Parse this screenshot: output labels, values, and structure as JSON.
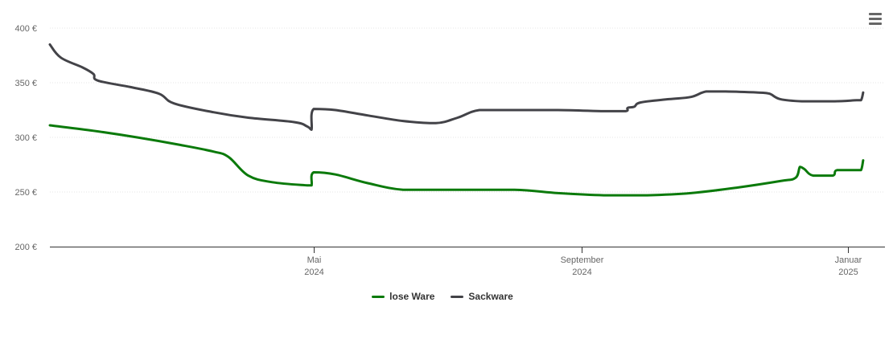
{
  "chart_data": {
    "type": "line",
    "title": "",
    "xlabel": "",
    "ylabel": "",
    "y_ticks": [
      "200 €",
      "250 €",
      "300 €",
      "350 €",
      "400 €"
    ],
    "ylim": [
      200,
      400
    ],
    "x_range": [
      "2024-01-01",
      "2025-01-18"
    ],
    "x_ticks": [
      {
        "date": "2024-05-01",
        "month": "Mai",
        "year": "2024"
      },
      {
        "date": "2024-09-01",
        "month": "September",
        "year": "2024"
      },
      {
        "date": "2025-01-01",
        "month": "Januar",
        "year": "2025"
      }
    ],
    "grid": "horizontal",
    "legend_position": "bottom-center",
    "series": [
      {
        "name": "lose Ware",
        "color": "#0b7a0b",
        "points": [
          [
            "2024-01-01",
            311
          ],
          [
            "2024-01-21",
            306
          ],
          [
            "2024-02-10",
            300
          ],
          [
            "2024-03-01",
            293
          ],
          [
            "2024-03-16",
            287
          ],
          [
            "2024-03-23",
            282
          ],
          [
            "2024-04-01",
            265
          ],
          [
            "2024-04-12",
            259
          ],
          [
            "2024-04-28",
            256
          ],
          [
            "2024-04-30",
            256
          ],
          [
            "2024-05-01",
            268
          ],
          [
            "2024-05-11",
            266
          ],
          [
            "2024-05-26",
            258
          ],
          [
            "2024-06-11",
            252
          ],
          [
            "2024-07-01",
            252
          ],
          [
            "2024-08-01",
            252
          ],
          [
            "2024-08-21",
            249
          ],
          [
            "2024-09-11",
            247
          ],
          [
            "2024-10-01",
            247
          ],
          [
            "2024-10-21",
            249
          ],
          [
            "2024-11-11",
            254
          ],
          [
            "2024-12-01",
            260
          ],
          [
            "2024-12-08",
            263
          ],
          [
            "2024-12-10",
            273
          ],
          [
            "2024-12-12",
            271
          ],
          [
            "2024-12-16",
            265
          ],
          [
            "2024-12-25",
            265
          ],
          [
            "2024-12-27",
            270
          ],
          [
            "2025-01-05",
            270
          ],
          [
            "2025-01-07",
            270
          ],
          [
            "2025-01-08",
            279
          ]
        ]
      },
      {
        "name": "Sackware",
        "color": "#434348",
        "points": [
          [
            "2024-01-01",
            385
          ],
          [
            "2024-01-06",
            373
          ],
          [
            "2024-01-16",
            364
          ],
          [
            "2024-01-21",
            358
          ],
          [
            "2024-01-23",
            352
          ],
          [
            "2024-02-07",
            346
          ],
          [
            "2024-02-20",
            340
          ],
          [
            "2024-02-27",
            331
          ],
          [
            "2024-03-16",
            323
          ],
          [
            "2024-04-01",
            318
          ],
          [
            "2024-04-22",
            314
          ],
          [
            "2024-04-28",
            310
          ],
          [
            "2024-04-30",
            307
          ],
          [
            "2024-05-01",
            326
          ],
          [
            "2024-05-11",
            325
          ],
          [
            "2024-05-26",
            320
          ],
          [
            "2024-06-11",
            315
          ],
          [
            "2024-06-26",
            313
          ],
          [
            "2024-07-06",
            318
          ],
          [
            "2024-07-16",
            325
          ],
          [
            "2024-08-01",
            325
          ],
          [
            "2024-08-21",
            325
          ],
          [
            "2024-09-11",
            324
          ],
          [
            "2024-09-21",
            324
          ],
          [
            "2024-09-22",
            327
          ],
          [
            "2024-09-25",
            328
          ],
          [
            "2024-09-28",
            332
          ],
          [
            "2024-10-11",
            335
          ],
          [
            "2024-10-21",
            337
          ],
          [
            "2024-10-28",
            342
          ],
          [
            "2024-11-06",
            342
          ],
          [
            "2024-11-21",
            341
          ],
          [
            "2024-11-26",
            340
          ],
          [
            "2024-12-01",
            335
          ],
          [
            "2024-12-11",
            333
          ],
          [
            "2024-12-26",
            333
          ],
          [
            "2025-01-05",
            334
          ],
          [
            "2025-01-07",
            334
          ],
          [
            "2025-01-08",
            341
          ]
        ]
      }
    ]
  }
}
